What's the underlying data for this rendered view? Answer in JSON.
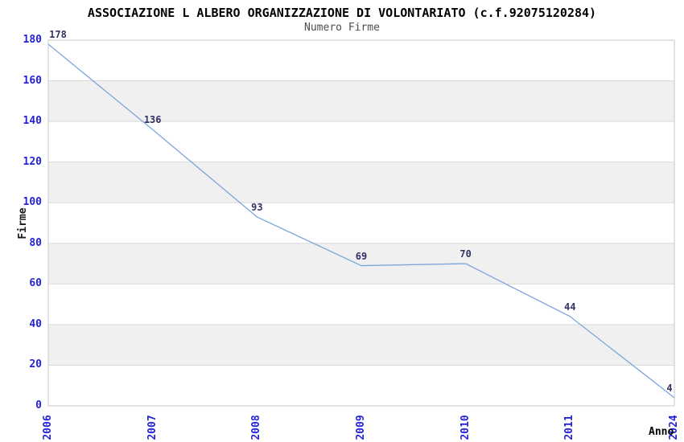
{
  "chart_data": {
    "type": "line",
    "title": "ASSOCIAZIONE L ALBERO ORGANIZZAZIONE DI VOLONTARIATO (c.f.92075120284)",
    "subtitle": "Numero Firme",
    "xlabel": "Anno",
    "ylabel": "Firme",
    "categories": [
      "2006",
      "2007",
      "2008",
      "2009",
      "2010",
      "2011",
      "2024"
    ],
    "values": [
      178,
      136,
      93,
      69,
      70,
      44,
      4
    ],
    "ylim": [
      0,
      180
    ],
    "ytick_step": 20,
    "grid": "horizontal-lines-with-alternating-bands",
    "legend": "none",
    "markers": "none",
    "colors": {
      "line": "#7ea6dd",
      "tick_label": "#2323d7",
      "data_label": "#333366",
      "band": "#f0f0f0",
      "grid": "#d9d9d9",
      "border": "#c9c9c9",
      "title": "#000000",
      "subtitle": "#4d4d4d"
    }
  }
}
